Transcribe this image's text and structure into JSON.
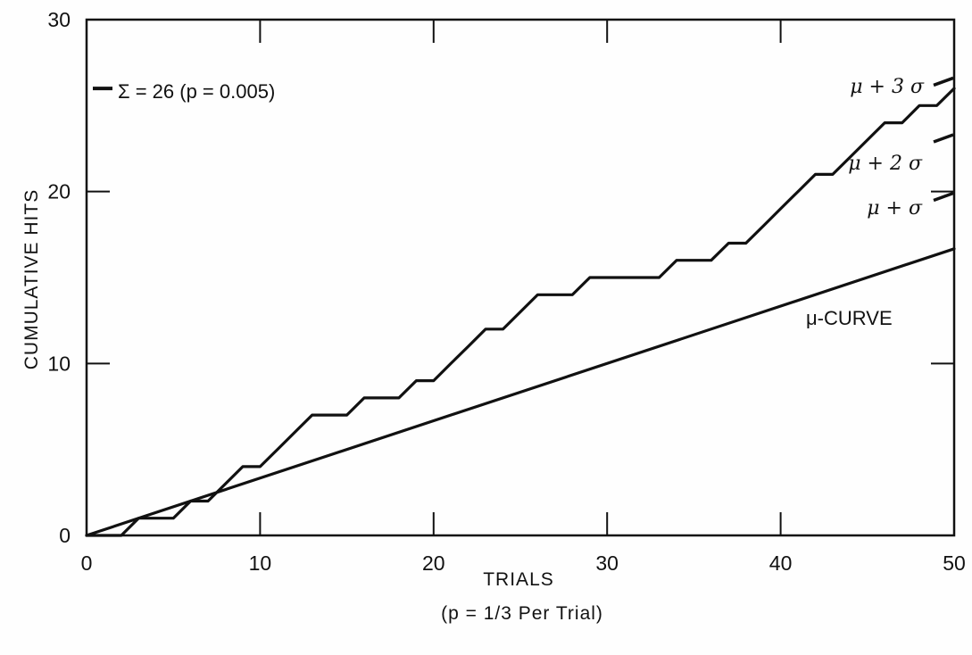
{
  "chart_data": {
    "type": "line",
    "title": "",
    "xlabel": "TRIALS",
    "xlabel_sub": "(p = 1/3 Per Trial)",
    "ylabel": "CUMULATIVE HITS",
    "xlim": [
      0,
      50
    ],
    "ylim": [
      0,
      30
    ],
    "x_ticks": [
      0,
      10,
      20,
      30,
      40,
      50
    ],
    "y_ticks": [
      0,
      10,
      20,
      30
    ],
    "x_tick_labels": [
      "0",
      "10",
      "20",
      "30",
      "40",
      "50"
    ],
    "y_tick_labels": [
      "0",
      "10",
      "20",
      "30"
    ],
    "grid": false,
    "series": [
      {
        "name": "cumulative hits",
        "x": [
          0,
          2,
          3,
          4,
          5,
          6,
          7,
          8,
          9,
          10,
          11,
          12,
          13,
          14,
          15,
          16,
          17,
          18,
          19,
          20,
          21,
          22,
          23,
          24,
          25,
          26,
          27,
          28,
          29,
          30,
          31,
          32,
          33,
          34,
          35,
          36,
          37,
          38,
          39,
          40,
          41,
          42,
          43,
          44,
          45,
          46,
          47,
          48,
          49,
          50
        ],
        "values": [
          0,
          0,
          1,
          1,
          1,
          2,
          2,
          3,
          4,
          4,
          5,
          6,
          7,
          7,
          7,
          8,
          8,
          8,
          9,
          9,
          10,
          11,
          12,
          12,
          13,
          14,
          14,
          14,
          15,
          15,
          15,
          15,
          15,
          16,
          16,
          16,
          17,
          17,
          18,
          19,
          20,
          21,
          21,
          22,
          23,
          24,
          24,
          25,
          25,
          26
        ]
      },
      {
        "name": "μ-CURVE",
        "x": [
          0,
          50
        ],
        "values": [
          0,
          16.67
        ]
      }
    ],
    "annotations": {
      "sigma_label": "Σ = 26 (p = 0.005)",
      "sigma_value": 26,
      "bound_labels": [
        {
          "label": "μ + 3 σ",
          "y": 26.5
        },
        {
          "label": "μ + 2 σ",
          "y": 23.2
        },
        {
          "label": "μ + σ",
          "y": 19.8
        }
      ],
      "mu_curve_label": "μ-CURVE"
    }
  }
}
